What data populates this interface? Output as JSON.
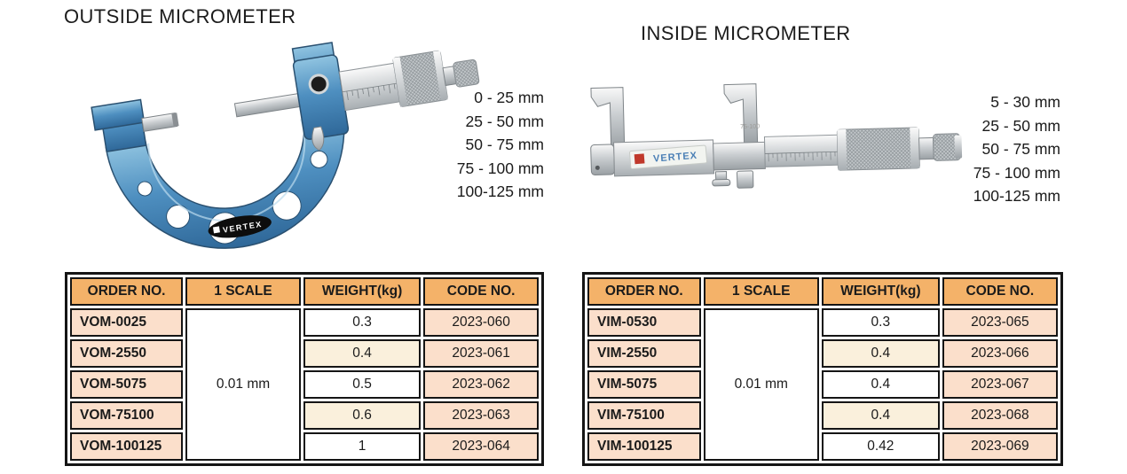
{
  "colors": {
    "header_bg": "#F4B269",
    "peach_bg": "#FBDFCB",
    "cream_bg": "#FAF0DC",
    "border_color": "#151515",
    "text_color": "#1B1B1B",
    "page_bg": "#FFFFFF",
    "frame_blue": "#4E8FC0",
    "metal_silver": "#C9CDD0",
    "badge_black": "#0D0D0D",
    "brand_red": "#C0392B",
    "brand_blue": "#4A7FB5"
  },
  "outside": {
    "title": "OUTSIDE MICROMETER",
    "brand": "VERTEX",
    "sizes": [
      "0 - 25 mm",
      "25 - 50 mm",
      "50 - 75 mm",
      "75 - 100 mm",
      "100-125 mm"
    ],
    "table": {
      "headers": [
        "ORDER NO.",
        "1 SCALE",
        "WEIGHT(kg)",
        "CODE NO."
      ],
      "scale": "0.01 mm",
      "rows": [
        {
          "order": "VOM-0025",
          "weight": "0.3",
          "code": "2023-060"
        },
        {
          "order": "VOM-2550",
          "weight": "0.4",
          "code": "2023-061"
        },
        {
          "order": "VOM-5075",
          "weight": "0.5",
          "code": "2023-062"
        },
        {
          "order": "VOM-75100",
          "weight": "0.6",
          "code": "2023-063"
        },
        {
          "order": "VOM-100125",
          "weight": "1",
          "code": "2023-064"
        }
      ]
    }
  },
  "inside": {
    "title": "INSIDE MICROMETER",
    "brand": "VERTEX",
    "range_label": "75-100",
    "sizes": [
      "5 - 30 mm",
      "25 - 50 mm",
      "50 - 75 mm",
      "75 - 100 mm",
      "100-125 mm"
    ],
    "table": {
      "headers": [
        "ORDER NO.",
        "1 SCALE",
        "WEIGHT(kg)",
        "CODE NO."
      ],
      "scale": "0.01 mm",
      "rows": [
        {
          "order": "VIM-0530",
          "weight": "0.3",
          "code": "2023-065"
        },
        {
          "order": "VIM-2550",
          "weight": "0.4",
          "code": "2023-066"
        },
        {
          "order": "VIM-5075",
          "weight": "0.4",
          "code": "2023-067"
        },
        {
          "order": "VIM-75100",
          "weight": "0.4",
          "code": "2023-068"
        },
        {
          "order": "VIM-100125",
          "weight": "0.42",
          "code": "2023-069"
        }
      ]
    }
  }
}
